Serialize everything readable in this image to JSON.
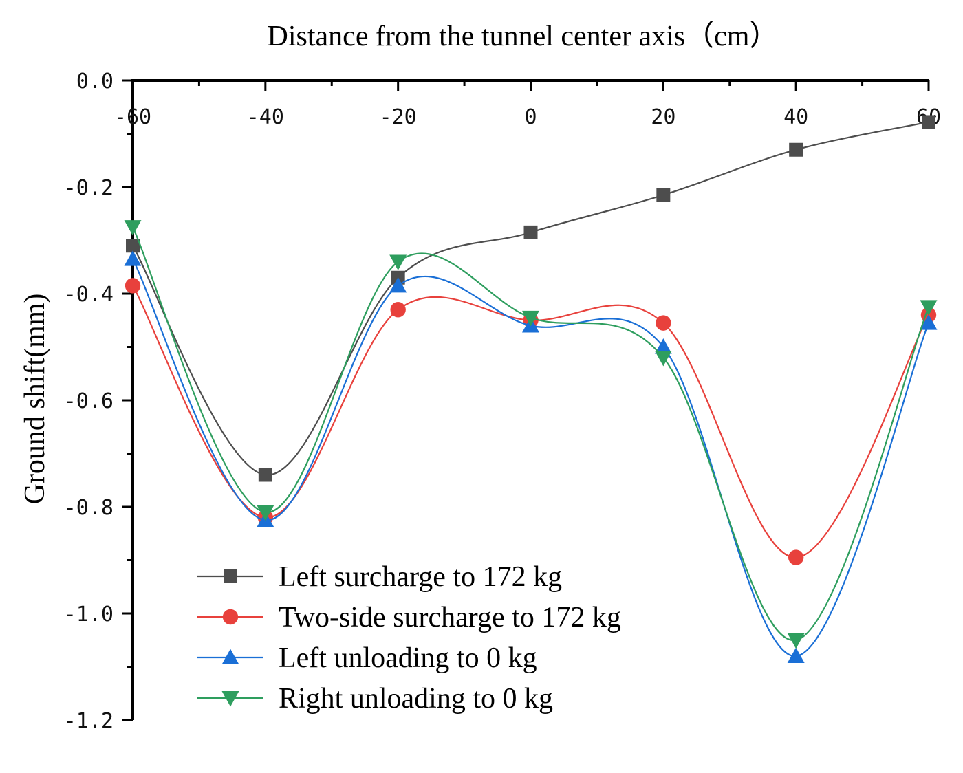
{
  "chart_data": {
    "type": "line",
    "smooth": true,
    "title": "",
    "xlabel": "Distance from the tunnel center axis（cm）",
    "ylabel": "Ground shift(mm)",
    "x": [
      -60,
      -40,
      -20,
      0,
      20,
      40,
      60
    ],
    "xlim": [
      -60,
      60
    ],
    "ylim": [
      -1.2,
      0.0
    ],
    "x_ticks": [
      -60,
      -40,
      -20,
      0,
      20,
      40,
      60
    ],
    "x_tick_labels": [
      "-60",
      "-40",
      "-20",
      "0",
      "20",
      "40",
      "60"
    ],
    "y_ticks": [
      0.0,
      -0.2,
      -0.4,
      -0.6,
      -0.8,
      -1.0,
      -1.2
    ],
    "y_tick_labels": [
      "0.0",
      "-0.2",
      "-0.4",
      "-0.6",
      "-0.8",
      "-1.0",
      "-1.2"
    ],
    "x_axis_position": "top",
    "grid": false,
    "legend_position": "bottom-left",
    "series": [
      {
        "name": "Left surcharge to 172 kg",
        "color": "#4d4d4d",
        "marker": "square",
        "values": [
          -0.31,
          -0.74,
          -0.37,
          -0.285,
          -0.215,
          -0.13,
          -0.078
        ]
      },
      {
        "name": "Two-side surcharge to 172 kg",
        "color": "#e8413c",
        "marker": "circle",
        "values": [
          -0.385,
          -0.82,
          -0.43,
          -0.45,
          -0.455,
          -0.895,
          -0.44
        ]
      },
      {
        "name": "Left unloading to 0 kg",
        "color": "#1a6fd6",
        "marker": "triangle-up",
        "values": [
          -0.335,
          -0.825,
          -0.385,
          -0.46,
          -0.5,
          -1.08,
          -0.455
        ]
      },
      {
        "name": "Right unloading to 0 kg",
        "color": "#2e9e5e",
        "marker": "triangle-down",
        "values": [
          -0.275,
          -0.81,
          -0.34,
          -0.445,
          -0.52,
          -1.05,
          -0.425
        ]
      }
    ]
  }
}
